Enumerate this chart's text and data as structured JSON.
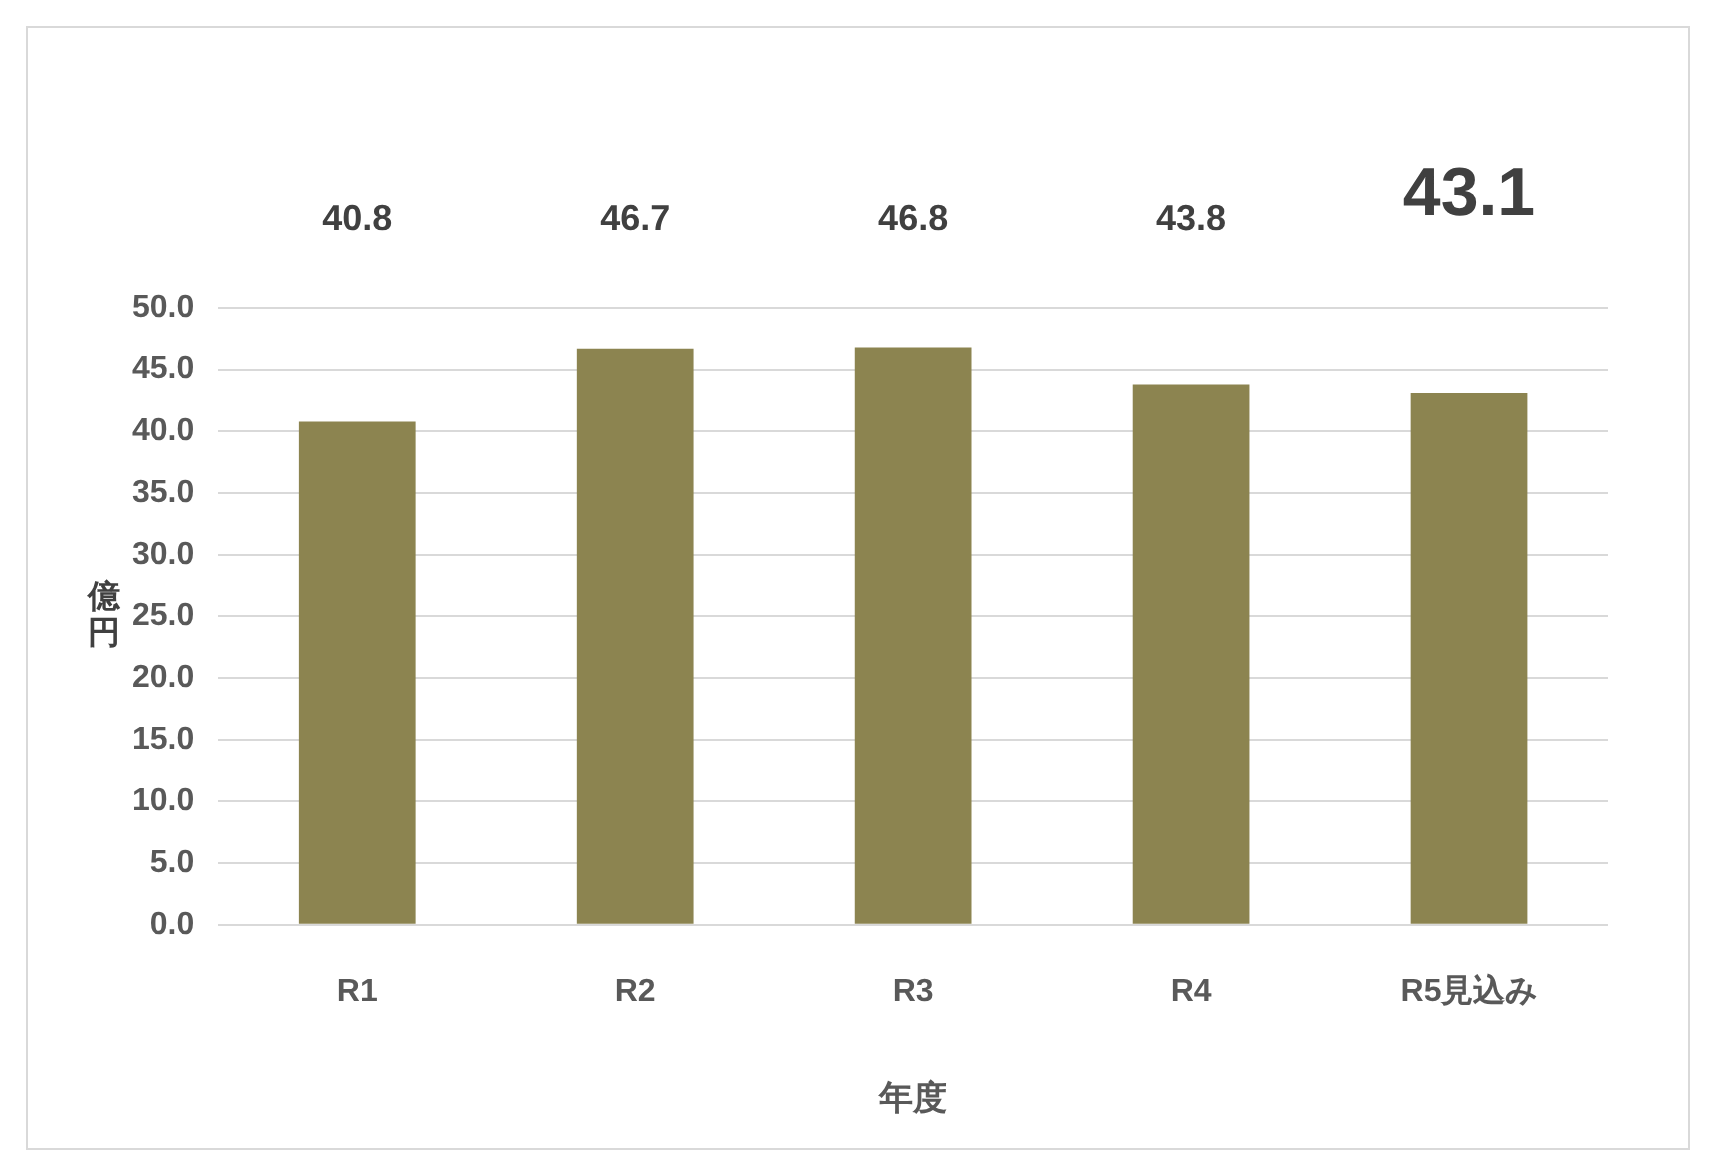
{
  "chart_data": {
    "type": "bar",
    "xlabel": "年度",
    "ylabel": "億円",
    "categories": [
      "R1",
      "R2",
      "R3",
      "R4",
      "R5見込み"
    ],
    "values": [
      40.8,
      46.7,
      46.8,
      43.8,
      43.1
    ],
    "color": "#8c8450",
    "ylim": [
      0,
      50
    ],
    "yticks": [
      {
        "value": 0,
        "label": "0.0"
      },
      {
        "value": 5,
        "label": "5.0"
      },
      {
        "value": 10,
        "label": "10.0"
      },
      {
        "value": 15,
        "label": "15.0"
      },
      {
        "value": 20,
        "label": "20.0"
      },
      {
        "value": 25,
        "label": "25.0"
      },
      {
        "value": 30,
        "label": "30.0"
      },
      {
        "value": 35,
        "label": "35.0"
      },
      {
        "value": 40,
        "label": "40.0"
      },
      {
        "value": 45,
        "label": "45.0"
      },
      {
        "value": 50,
        "label": "50.0"
      }
    ],
    "grid": "y",
    "data_labels": true,
    "legend": false
  }
}
